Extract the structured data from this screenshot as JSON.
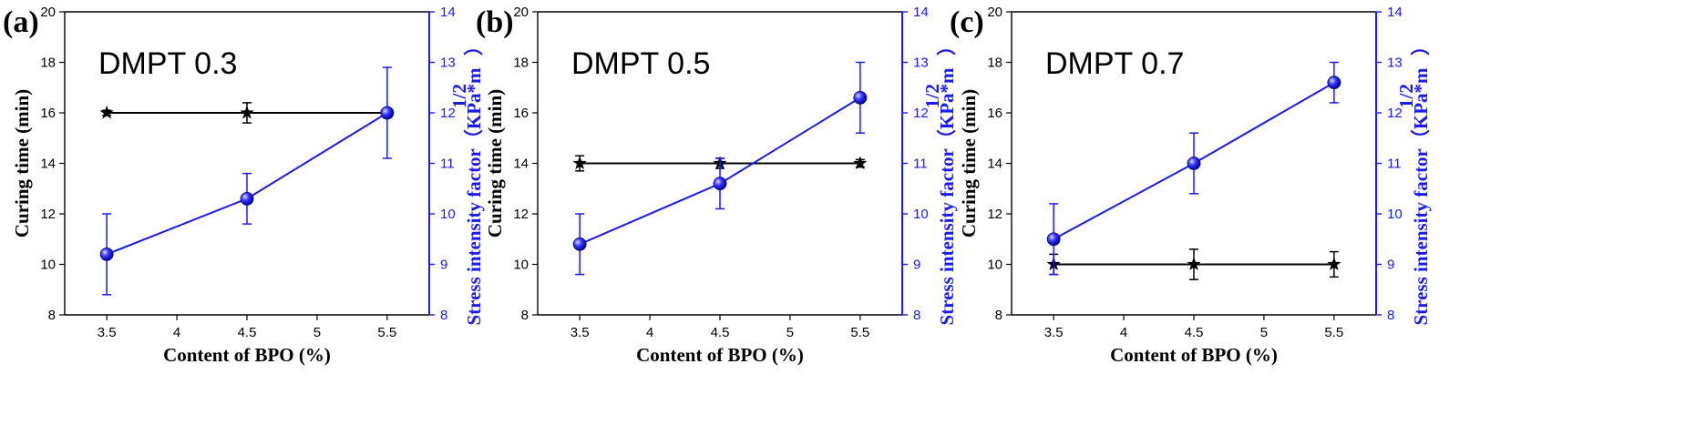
{
  "colors": {
    "left_series": "#000000",
    "right_series": "#1a1aff"
  },
  "chart_data": [
    {
      "type": "line",
      "panel_label": "(a)",
      "annotation": "DMPT 0.3",
      "xlabel": "Content of BPO (%)",
      "ylabel_left": "Curing time (min)",
      "ylabel_right": "Stress intensity factor（KPa*m",
      "ylabel_right_sup": "1/2",
      "ylabel_right_close": "）",
      "xlim": [
        3.2,
        5.8
      ],
      "xticks": [
        3.5,
        4.0,
        4.5,
        5.0,
        5.5
      ],
      "ylim_left": [
        8,
        20
      ],
      "yticks_left": [
        8,
        10,
        12,
        14,
        16,
        18,
        20
      ],
      "ylim_right": [
        8,
        14
      ],
      "yticks_right": [
        8,
        9,
        10,
        11,
        12,
        13,
        14
      ],
      "x": [
        3.5,
        4.5,
        5.5
      ],
      "series": [
        {
          "axis": "left",
          "marker": "star",
          "values": [
            16,
            16,
            16
          ],
          "err": [
            0.1,
            0.4,
            0.1
          ]
        },
        {
          "axis": "right",
          "marker": "circle",
          "values": [
            9.2,
            10.3,
            12.0
          ],
          "err": [
            0.8,
            0.5,
            0.9
          ]
        }
      ]
    },
    {
      "type": "line",
      "panel_label": "(b)",
      "annotation": "DMPT 0.5",
      "xlabel": "Content of BPO (%)",
      "ylabel_left": "Curing time (min)",
      "ylabel_right": "Stress intensity factor（KPa*m",
      "ylabel_right_sup": "1/2",
      "ylabel_right_close": "）",
      "xlim": [
        3.2,
        5.8
      ],
      "xticks": [
        3.5,
        4.0,
        4.5,
        5.0,
        5.5
      ],
      "ylim_left": [
        8,
        20
      ],
      "yticks_left": [
        8,
        10,
        12,
        14,
        16,
        18,
        20
      ],
      "ylim_right": [
        8,
        14
      ],
      "yticks_right": [
        8,
        9,
        10,
        11,
        12,
        13,
        14
      ],
      "x": [
        3.5,
        4.5,
        5.5
      ],
      "series": [
        {
          "axis": "left",
          "marker": "star",
          "values": [
            14,
            14,
            14
          ],
          "err": [
            0.3,
            0.2,
            0.15
          ]
        },
        {
          "axis": "right",
          "marker": "circle",
          "values": [
            9.4,
            10.6,
            12.3
          ],
          "err": [
            0.6,
            0.5,
            0.7
          ]
        }
      ]
    },
    {
      "type": "line",
      "panel_label": "(c)",
      "annotation": "DMPT 0.7",
      "xlabel": "Content of BPO (%)",
      "ylabel_left": "Curing time (min)",
      "ylabel_right": "Stress intensity factor（KPa*m",
      "ylabel_right_sup": "1/2",
      "ylabel_right_close": "）",
      "xlim": [
        3.2,
        5.8
      ],
      "xticks": [
        3.5,
        4.0,
        4.5,
        5.0,
        5.5
      ],
      "ylim_left": [
        8,
        20
      ],
      "yticks_left": [
        8,
        10,
        12,
        14,
        16,
        18,
        20
      ],
      "ylim_right": [
        8,
        14
      ],
      "yticks_right": [
        8,
        9,
        10,
        11,
        12,
        13,
        14
      ],
      "x": [
        3.5,
        4.5,
        5.5
      ],
      "series": [
        {
          "axis": "left",
          "marker": "star",
          "values": [
            10,
            10,
            10
          ],
          "err": [
            0.4,
            0.6,
            0.5
          ]
        },
        {
          "axis": "right",
          "marker": "circle",
          "values": [
            9.5,
            11.0,
            12.6
          ],
          "err": [
            0.7,
            0.6,
            0.4
          ]
        }
      ]
    }
  ]
}
